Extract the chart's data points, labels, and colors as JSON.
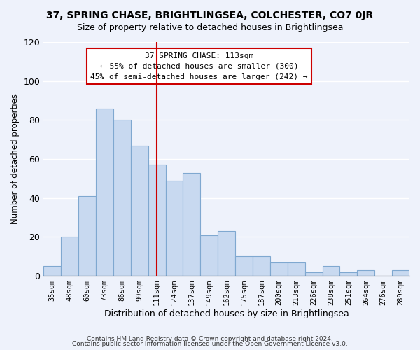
{
  "title": "37, SPRING CHASE, BRIGHTLINGSEA, COLCHESTER, CO7 0JR",
  "subtitle": "Size of property relative to detached houses in Brightlingsea",
  "xlabel": "Distribution of detached houses by size in Brightlingsea",
  "ylabel": "Number of detached properties",
  "categories": [
    "35sqm",
    "48sqm",
    "60sqm",
    "73sqm",
    "86sqm",
    "99sqm",
    "111sqm",
    "124sqm",
    "137sqm",
    "149sqm",
    "162sqm",
    "175sqm",
    "187sqm",
    "200sqm",
    "213sqm",
    "226sqm",
    "238sqm",
    "251sqm",
    "264sqm",
    "276sqm",
    "289sqm"
  ],
  "values": [
    5,
    20,
    41,
    86,
    80,
    67,
    57,
    49,
    53,
    21,
    23,
    10,
    10,
    7,
    7,
    2,
    5,
    2,
    3,
    0,
    3
  ],
  "bar_color": "#c8d9f0",
  "bar_edge_color": "#7fa8d0",
  "vline_x_index": 6,
  "vline_color": "#cc0000",
  "annotation_title": "37 SPRING CHASE: 113sqm",
  "annotation_line1": "← 55% of detached houses are smaller (300)",
  "annotation_line2": "45% of semi-detached houses are larger (242) →",
  "annotation_box_color": "#ffffff",
  "annotation_box_edge_color": "#cc0000",
  "ylim": [
    0,
    120
  ],
  "yticks": [
    0,
    20,
    40,
    60,
    80,
    100,
    120
  ],
  "footer1": "Contains HM Land Registry data © Crown copyright and database right 2024.",
  "footer2": "Contains public sector information licensed under the Open Government Licence v3.0.",
  "bg_color": "#eef2fb"
}
